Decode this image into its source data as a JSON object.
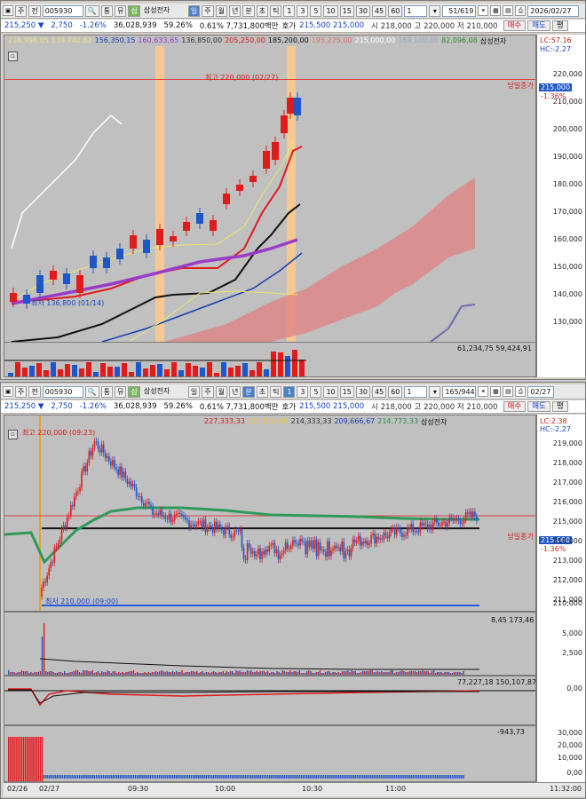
{
  "top": {
    "toolbar": {
      "ju": "주",
      "jeon": "전",
      "code": "005930",
      "tong": "통",
      "myu": "뮤",
      "sam": "삼",
      "stock_name": "삼성전자",
      "periods": [
        "일",
        "주",
        "월",
        "년",
        "분",
        "초",
        "틱"
      ],
      "minutes": [
        "1",
        "3",
        "5",
        "10",
        "15",
        "30",
        "45",
        "60"
      ],
      "count": "1",
      "page": "51/619",
      "date": "2026/02/27"
    },
    "quote": {
      "price": "215,250 ▼",
      "change": "2,750",
      "rate": "-1.26%",
      "volume": "36,028,939",
      "ratio": "59.26%",
      "turnover": "0.61% 7,731,800백만",
      "hoga_label": "호가",
      "hoga": "215,500  215,000",
      "high": "시 218,000 고 220,000 저 210,000",
      "buy": "매수",
      "sell": "매도",
      "eval": "평"
    },
    "legend": [
      {
        "text": "214,996,05",
        "color": "#e8e27a"
      },
      {
        "text": "139,740,62",
        "color": "#e8e27a"
      },
      {
        "text": "156,350,15",
        "color": "#1640b0"
      },
      {
        "text": "160,633,65",
        "color": "#9a3cc8"
      },
      {
        "text": "136,850,00",
        "color": "#333333"
      },
      {
        "text": "205,250,00",
        "color": "#d81b1b"
      },
      {
        "text": "185,200,00",
        "color": "#111111"
      },
      {
        "text": "195,225,00",
        "color": "#e07070"
      },
      {
        "text": "215,000,00",
        "color": "#ffffff"
      },
      {
        "text": "169,100,00",
        "color": "#9aa8c8"
      },
      {
        "text": "82,096,08",
        "color": "#2a8a2a"
      },
      {
        "text": "삼성전자",
        "color": "#111111"
      }
    ],
    "lc": "LC:57.16",
    "hc": "HC:-2.27",
    "max_label": "최고 220,000 (02/27)",
    "min_label": "최저 136,800 (01/14)",
    "prev_close_label": "당일종가",
    "price_tag": "215,000",
    "rate_tag": "-1.36%",
    "volume_legend": "61,234,75  59,424,91",
    "y_ticks": [
      "220,000",
      "210,000",
      "200,000",
      "190,000",
      "180,000",
      "170,000",
      "160,000",
      "150,000",
      "140,000",
      "130,000"
    ],
    "colors": {
      "up": "#e01b1b",
      "down": "#1f56c8",
      "cloud": "#e08080",
      "highlight": "#ffc98a"
    }
  },
  "bottom": {
    "toolbar": {
      "ju": "주",
      "jeon": "전",
      "code": "005930",
      "tong": "통",
      "myu": "뮤",
      "sam": "삼",
      "stock_name": "삼성전자",
      "periods": [
        "일",
        "주",
        "월",
        "년",
        "분",
        "초",
        "틱"
      ],
      "minutes": [
        "1",
        "3",
        "5",
        "10",
        "15",
        "30",
        "45",
        "60"
      ],
      "count": "1",
      "page": "165/944",
      "date": "02/27"
    },
    "quote": {
      "price": "215,250 ▼",
      "change": "2,750",
      "rate": "-1.26%",
      "volume": "36,028,939",
      "ratio": "59.26%",
      "turnover": "0.61% 7,731,800백만",
      "hoga_label": "호가",
      "hoga": "215,500  215,000",
      "high": "시 218,000 고 220,000 저 210,000",
      "buy": "매수",
      "sell": "매도",
      "eval": "평"
    },
    "legend": [
      {
        "text": "227,333,33",
        "color": "#d81b1b"
      },
      {
        "text": "221,000,00",
        "color": "#e8c84a"
      },
      {
        "text": "214,333,33",
        "color": "#333333"
      },
      {
        "text": "209,666,67",
        "color": "#1640b0"
      },
      {
        "text": "214,773,33",
        "color": "#2a8a4a"
      },
      {
        "text": "삼성전자",
        "color": "#111111"
      }
    ],
    "lc": "LC:2.38",
    "hc": "HC:-2.27",
    "max_label": "최고 220,000 (09:23)",
    "min_label": "최저 210,000 (09:00)",
    "prev_close_label": "당일종가",
    "price_tag": "215,000",
    "rate_tag": "-1.36%",
    "y_ticks": [
      "219,000",
      "218,000",
      "217,000",
      "216,000",
      "215,000",
      "214,000",
      "213,000",
      "212,000",
      "211,000",
      "210,000"
    ],
    "vol_legend": "8,45  173,46",
    "vol_ticks": [
      "5,000",
      "2,500"
    ],
    "osc_legend": "77,227,18  150,107,87",
    "osc_ticks": [
      "0,00"
    ],
    "hist_legend": "-943,73",
    "hist_ticks": [
      "30,000",
      "20,000",
      "10,000",
      "0,00"
    ],
    "x_ticks": [
      "02/26",
      "02/27",
      "09:30",
      "10:00",
      "10:30",
      "11:00"
    ],
    "time": "11:32:00"
  }
}
